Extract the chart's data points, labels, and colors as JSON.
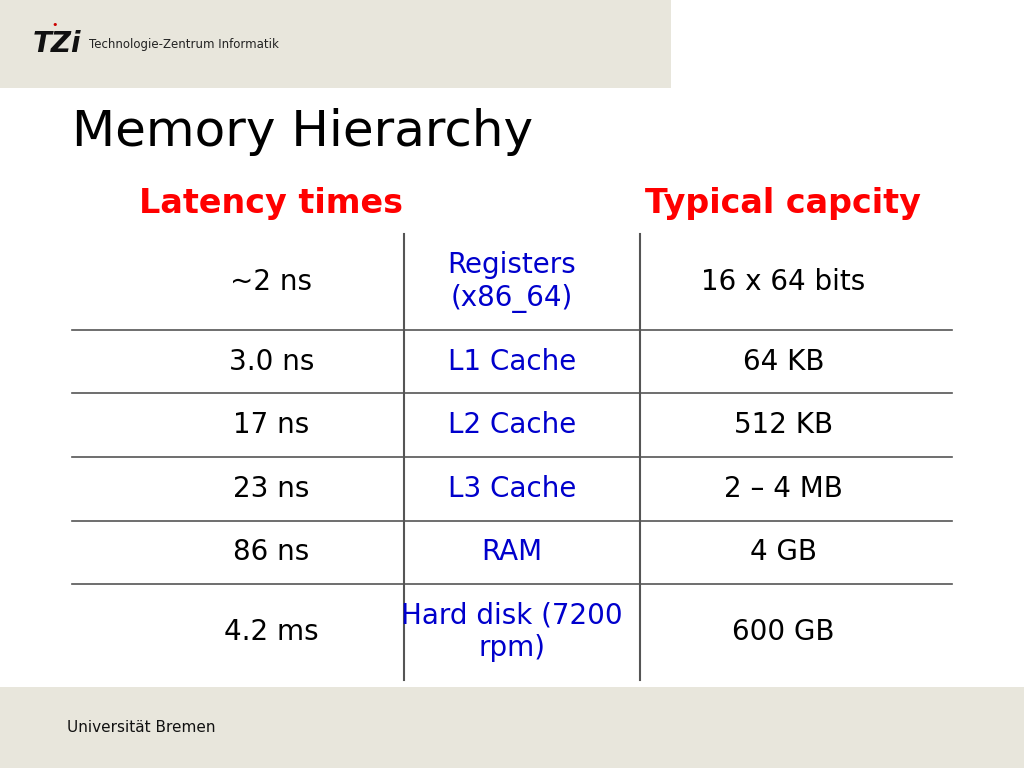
{
  "title": "Memory Hierarchy",
  "title_fontsize": 36,
  "title_color": "#000000",
  "col1_header": "Latency times",
  "col3_header": "Typical capcity",
  "header_color": "#ff0000",
  "header_fontsize": 24,
  "rows": [
    {
      "latency": "~2 ns",
      "component": "Registers\n(x86_64)",
      "capacity": "16 x 64 bits"
    },
    {
      "latency": "3.0 ns",
      "component": "L1 Cache",
      "capacity": "64 KB"
    },
    {
      "latency": "17 ns",
      "component": "L2 Cache",
      "capacity": "512 KB"
    },
    {
      "latency": "23 ns",
      "component": "L3 Cache",
      "capacity": "2 – 4 MB"
    },
    {
      "latency": "86 ns",
      "component": "RAM",
      "capacity": "4 GB"
    },
    {
      "latency": "4.2 ms",
      "component": "Hard disk (7200\nrpm)",
      "capacity": "600 GB"
    }
  ],
  "latency_color": "#000000",
  "component_color": "#0000cc",
  "capacity_color": "#000000",
  "data_fontsize": 20,
  "band_color": "#e8e6dc",
  "footer_text": "Universität Bremen",
  "header_sub": "Technologie-Zentrum Informatik"
}
